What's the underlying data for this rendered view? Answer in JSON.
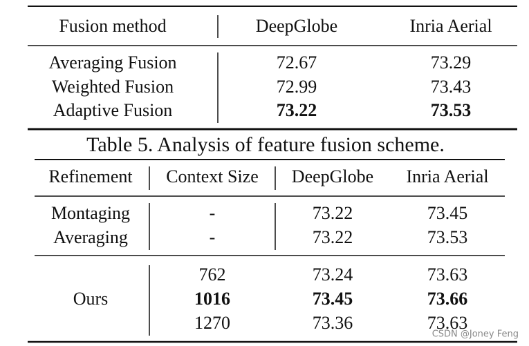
{
  "table1": {
    "header": [
      "Fusion method",
      "DeepGlobe",
      "Inria Aerial"
    ],
    "rows": [
      [
        "Averaging Fusion",
        "72.67",
        "73.29"
      ],
      [
        "Weighted Fusion",
        "72.99",
        "73.43"
      ],
      [
        "Adaptive Fusion",
        "73.22",
        "73.53"
      ]
    ]
  },
  "caption": "Table 5. Analysis of feature fusion scheme.",
  "table2": {
    "header": [
      "Refinement",
      "Context Size",
      "DeepGlobe",
      "Inria Aerial"
    ],
    "rows": [
      [
        "Montaging",
        "-",
        "73.22",
        "73.45"
      ],
      [
        "Averaging",
        "-",
        "73.22",
        "73.53"
      ]
    ],
    "ours": {
      "label": "Ours",
      "rows": [
        [
          "762",
          "73.24",
          "73.63"
        ],
        [
          "1016",
          "73.45",
          "73.66"
        ],
        [
          "1270",
          "73.36",
          "73.63"
        ]
      ]
    }
  },
  "watermark": "CSDN @Joney Feng"
}
